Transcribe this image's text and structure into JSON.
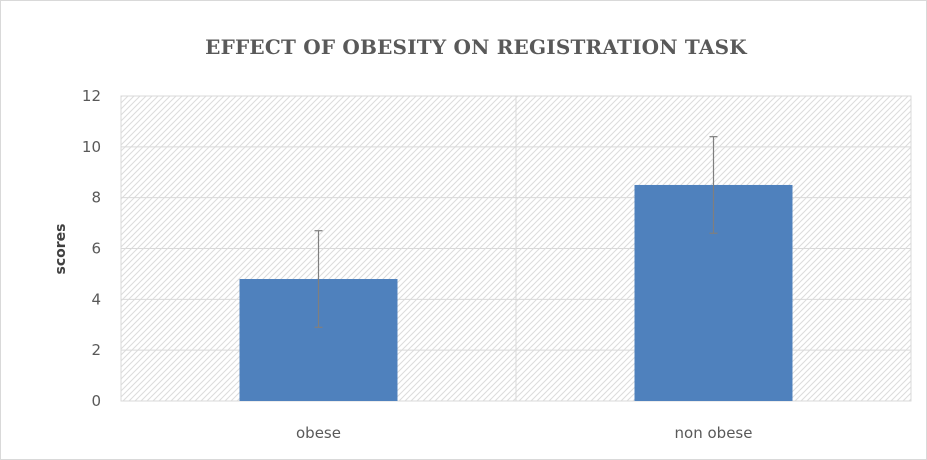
{
  "chart_data": {
    "type": "bar",
    "title": "EFFECT OF OBESITY ON REGISTRATION TASK",
    "xlabel": "",
    "ylabel": "scores",
    "categories": [
      "obese",
      "non obese"
    ],
    "values": [
      4.8,
      8.5
    ],
    "error_bars": [
      {
        "low": 2.9,
        "high": 6.7
      },
      {
        "low": 6.6,
        "high": 10.4
      }
    ],
    "ylim": [
      0,
      12
    ],
    "yticks": [
      0,
      2,
      4,
      6,
      8,
      10,
      12
    ],
    "grid": true,
    "legend": "none",
    "bar_color": "#4f81bd",
    "plot_pattern": "diagonal-hatch"
  }
}
